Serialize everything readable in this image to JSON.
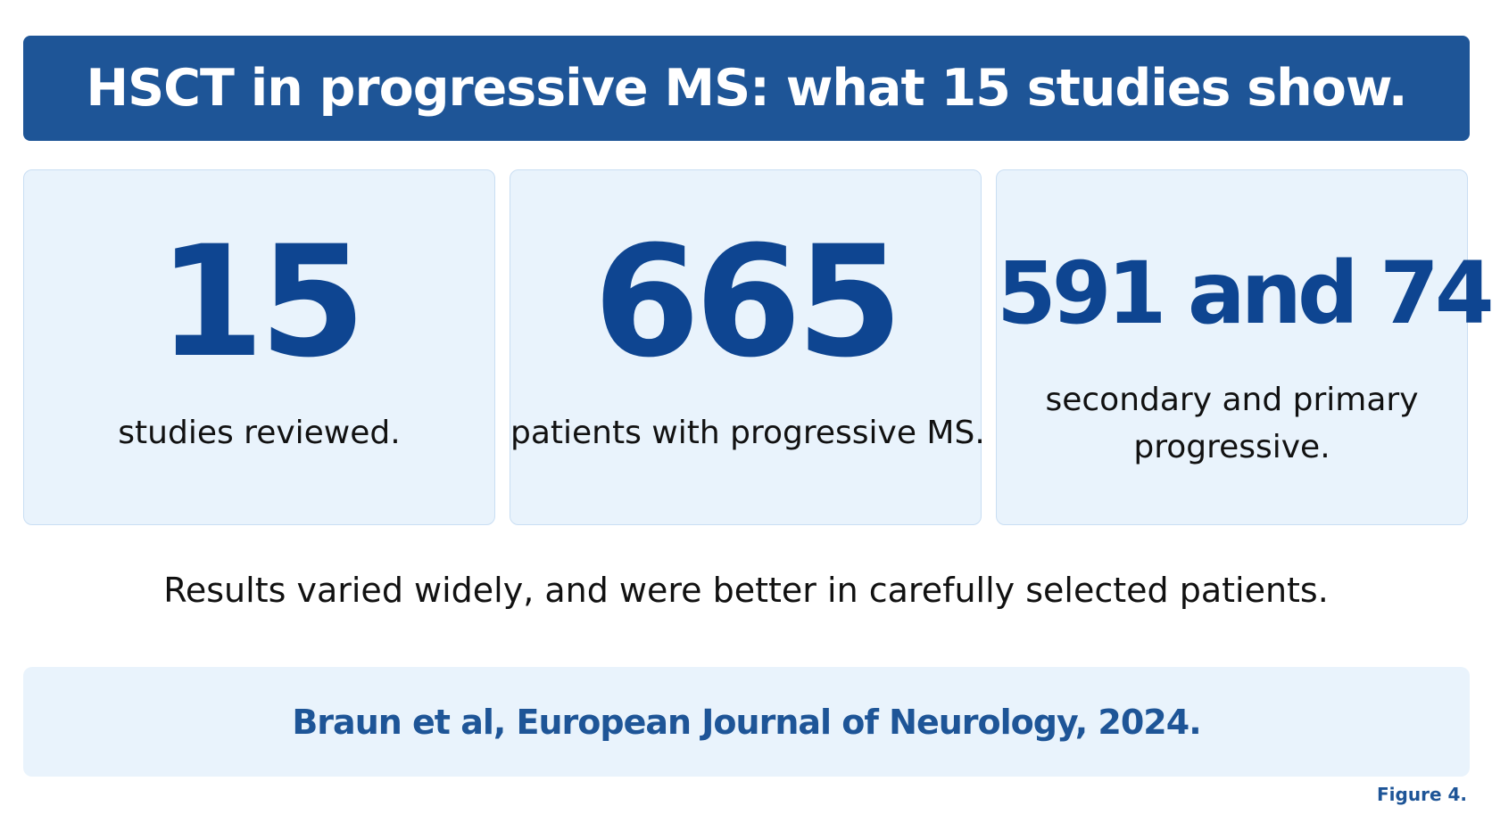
{
  "header": {
    "title": "HSCT in progressive MS: what 15 studies show."
  },
  "stats": [
    {
      "value": "15",
      "caption": "studies reviewed."
    },
    {
      "value": "665",
      "caption": "patients with progressive MS."
    },
    {
      "value": "591 and 74",
      "caption": "secondary and primary progressive."
    }
  ],
  "summary": "Results varied widely, and were better in carefully selected patients.",
  "citation": "Braun et al, European Journal of Neurology, 2024.",
  "figure_label": "Figure 4.",
  "colors": {
    "banner": "#1e5597",
    "stat_text": "#0e4591",
    "card_background": "#e9f3fc",
    "card_border": "#c9def3",
    "citation_text": "#1e5597"
  }
}
